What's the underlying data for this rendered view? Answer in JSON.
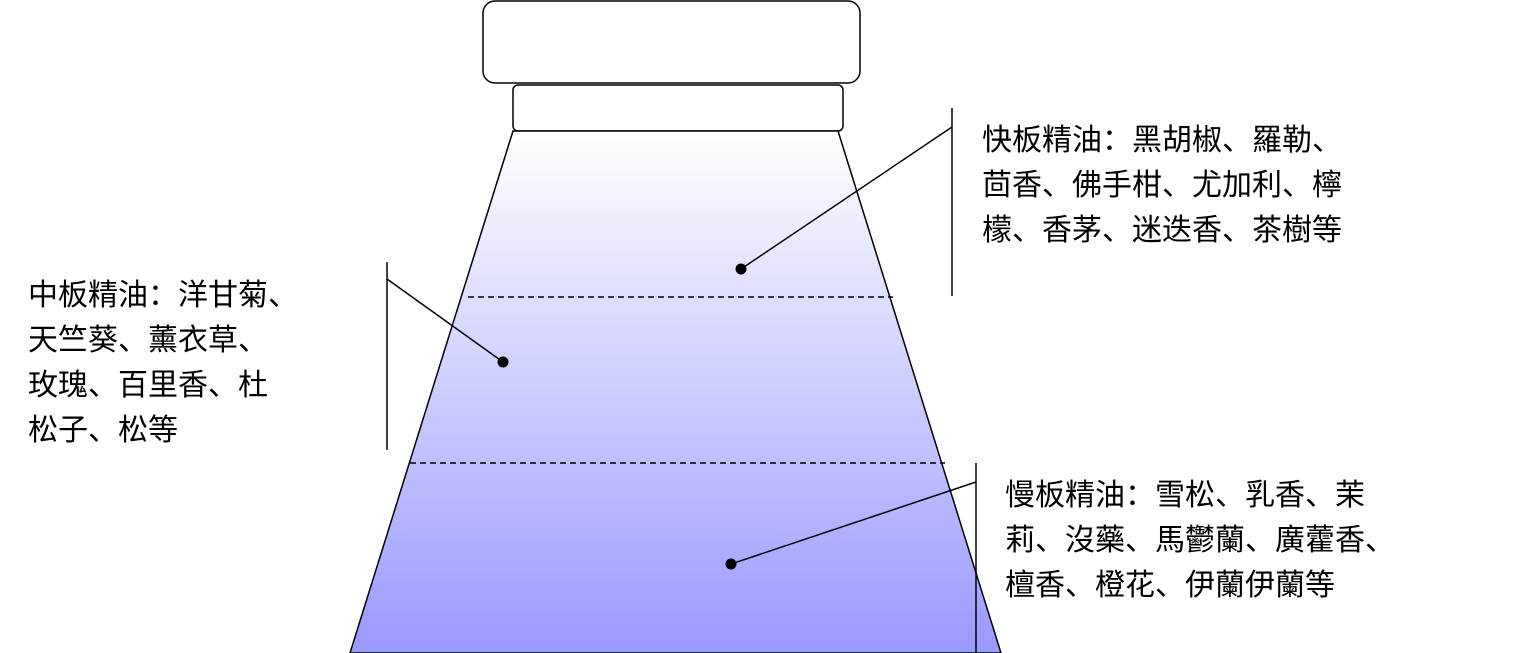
{
  "colors": {
    "gradient_top": "#ffffff",
    "gradient_bottom": "#9999ff",
    "stroke": "#000000"
  },
  "notes": {
    "top": {
      "lines": [
        "快板精油：黑胡椒、羅勒、",
        "茴香、佛手柑、尤加利、檸",
        "檬、香茅、迷迭香、茶樹等"
      ]
    },
    "middle": {
      "lines": [
        "中板精油：洋甘菊、",
        "天竺葵、薰衣草、",
        "玫瑰、百里香、杜",
        "松子、松等"
      ]
    },
    "base": {
      "lines": [
        "慢板精油：雪松、乳香、茉",
        "莉、沒藥、馬鬱蘭、廣藿香、",
        "檀香、橙花、伊蘭伊蘭等"
      ]
    }
  }
}
